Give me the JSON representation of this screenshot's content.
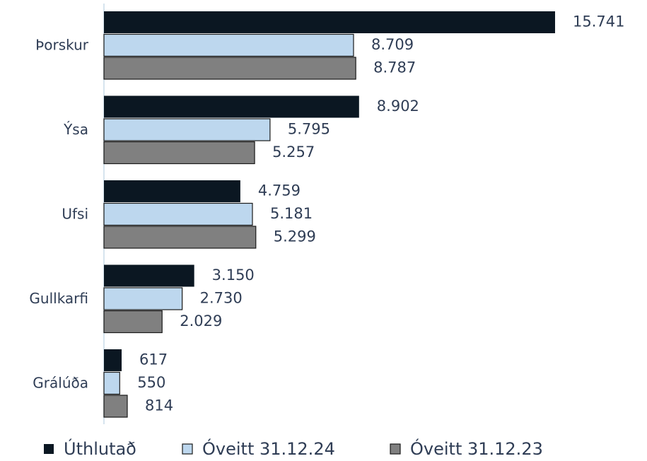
{
  "chart_data": {
    "type": "hbar",
    "categories": [
      "Þorskur",
      "Ýsa",
      "Ufsi",
      "Gullkarfi",
      "Grálúða"
    ],
    "series": [
      {
        "name": "Úthlutað",
        "color": "#0b1722",
        "values": [
          15741,
          8902,
          4759,
          3150,
          617
        ],
        "value_labels": [
          "15.741",
          "8.902",
          "4.759",
          "3.150",
          "617"
        ]
      },
      {
        "name": "Óveitt 31.12.24",
        "color": "#bdd7ee",
        "values": [
          8709,
          5795,
          5181,
          2730,
          550
        ],
        "value_labels": [
          "8.709",
          "5.795",
          "5.181",
          "2.730",
          "550"
        ]
      },
      {
        "name": "Óveitt 31.12.23",
        "color": "#808080",
        "values": [
          8787,
          5257,
          5299,
          2029,
          814
        ],
        "value_labels": [
          "8.787",
          "5.257",
          "5.299",
          "2.029",
          "814"
        ]
      }
    ],
    "legend": "bottom"
  }
}
